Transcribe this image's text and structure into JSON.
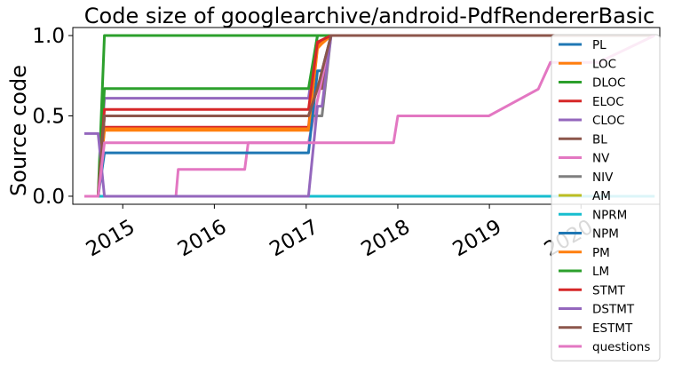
{
  "chart_data": {
    "type": "line",
    "title": "Code size of googlearchive/android-PdfRendererBasic",
    "xlabel": "",
    "ylabel": "Source code",
    "xlim": [
      "2014-06-16",
      "2020-11-10"
    ],
    "ylim": [
      -0.05,
      1.05
    ],
    "x_ticks": [
      "2015",
      "2016",
      "2017",
      "2018",
      "2019",
      "2020"
    ],
    "x_tick_dates": [
      "2015-01-01",
      "2016-01-01",
      "2017-01-01",
      "2018-01-01",
      "2019-01-01",
      "2020-01-01"
    ],
    "y_ticks": [
      "0.0",
      "0.5",
      "1.0"
    ],
    "y_tick_values": [
      0,
      0.5,
      1
    ],
    "grid": false,
    "legend_position": "right",
    "series": [
      {
        "name": "PL",
        "color": "#1f77b4",
        "x": [
          "2014-08-01",
          "2014-09-25",
          "2014-10-20",
          "2020-10-20"
        ],
        "y": [
          0,
          0,
          0,
          0
        ]
      },
      {
        "name": "LOC",
        "color": "#ff7f0e",
        "x": [
          "2014-08-01",
          "2014-09-25",
          "2014-10-20",
          "2017-01-10",
          "2017-02-15",
          "2017-03-05",
          "2017-04-10",
          "2020-10-20"
        ],
        "y": [
          0,
          0,
          0.41,
          0.41,
          0.92,
          0.95,
          1,
          1
        ]
      },
      {
        "name": "DLOC",
        "color": "#2ca02c",
        "x": [
          "2014-08-01",
          "2014-09-25",
          "2014-10-20",
          "2017-01-10",
          "2017-02-15",
          "2017-04-10",
          "2020-10-20"
        ],
        "y": [
          0,
          0,
          1,
          1,
          1,
          1,
          1
        ]
      },
      {
        "name": "ELOC",
        "color": "#d62728",
        "x": [
          "2014-08-01",
          "2014-09-25",
          "2014-10-20",
          "2017-01-10",
          "2017-02-15",
          "2017-03-05",
          "2017-04-10",
          "2020-10-20"
        ],
        "y": [
          0,
          0,
          0.43,
          0.43,
          0.94,
          0.96,
          1,
          1
        ]
      },
      {
        "name": "CLOC",
        "color": "#9467bd",
        "x": [
          "2014-08-01",
          "2014-09-25",
          "2014-10-20",
          "2017-01-10",
          "2017-02-15",
          "2017-04-10",
          "2020-10-20"
        ],
        "y": [
          0,
          0,
          0.61,
          0.61,
          1,
          1,
          1
        ]
      },
      {
        "name": "BL",
        "color": "#8c564b",
        "x": [
          "2014-08-01",
          "2014-09-25",
          "2014-10-20",
          "2017-01-10",
          "2017-02-15",
          "2017-03-05",
          "2017-04-10",
          "2020-10-20"
        ],
        "y": [
          0,
          0,
          0.5,
          0.5,
          0.67,
          0.67,
          1,
          1
        ]
      },
      {
        "name": "NV",
        "color": "#e377c2",
        "x": [
          "2014-08-01",
          "2014-09-25",
          "2014-10-20",
          "2015-08-01",
          "2015-08-10",
          "2016-05-01",
          "2016-05-15",
          "2017-01-10",
          "2017-04-10",
          "2020-10-20"
        ],
        "y": [
          0,
          0,
          0,
          0,
          0.167,
          0.167,
          0.333,
          0.333,
          1,
          1
        ]
      },
      {
        "name": "NIV",
        "color": "#7f7f7f",
        "x": [
          "2014-08-01",
          "2014-09-25",
          "2014-10-20",
          "2017-01-10",
          "2017-02-15",
          "2017-03-05",
          "2017-04-10",
          "2020-10-20"
        ],
        "y": [
          0,
          0,
          0.5,
          0.5,
          0.5,
          0.5,
          1,
          1
        ]
      },
      {
        "name": "AM",
        "color": "#bcbd22",
        "x": [
          "2014-08-01",
          "2020-10-20"
        ],
        "y": [
          0,
          0
        ]
      },
      {
        "name": "NPRM",
        "color": "#17becf",
        "x": [
          "2014-08-01",
          "2020-10-20"
        ],
        "y": [
          0,
          0
        ]
      },
      {
        "name": "NPM",
        "color": "#1f77b4",
        "x": [
          "2014-08-01",
          "2014-09-25",
          "2014-10-20",
          "2017-01-10",
          "2017-02-15",
          "2017-03-05",
          "2017-04-10",
          "2020-10-20"
        ],
        "y": [
          0,
          0,
          0.27,
          0.27,
          0.78,
          0.78,
          1,
          1
        ]
      },
      {
        "name": "PM",
        "color": "#ff7f0e",
        "x": [
          "2014-08-01",
          "2014-09-25",
          "2014-10-20",
          "2017-01-10",
          "2017-02-15",
          "2017-04-10",
          "2020-10-20"
        ],
        "y": [
          0,
          0,
          0.42,
          0.42,
          0.93,
          1,
          1
        ]
      },
      {
        "name": "LM",
        "color": "#2ca02c",
        "x": [
          "2014-08-01",
          "2014-09-25",
          "2014-10-20",
          "2017-01-10",
          "2017-02-15",
          "2017-04-10",
          "2020-10-20"
        ],
        "y": [
          0,
          0,
          0.67,
          0.67,
          1,
          1,
          1
        ]
      },
      {
        "name": "STMT",
        "color": "#d62728",
        "x": [
          "2014-08-01",
          "2014-09-25",
          "2014-10-20",
          "2017-01-10",
          "2017-02-15",
          "2017-04-10",
          "2020-10-20"
        ],
        "y": [
          0,
          0,
          0.54,
          0.54,
          0.96,
          1,
          1
        ]
      },
      {
        "name": "DSTMT",
        "color": "#9467bd",
        "x": [
          "2014-08-01",
          "2014-09-25",
          "2014-10-20",
          "2017-01-10",
          "2017-02-15",
          "2017-03-05",
          "2017-04-10",
          "2020-10-20"
        ],
        "y": [
          0.39,
          0.39,
          0,
          0,
          0.56,
          0.56,
          1,
          1
        ]
      },
      {
        "name": "ESTMT",
        "color": "#8c564b",
        "x": [
          "2014-08-01",
          "2014-09-25",
          "2014-10-20",
          "2017-01-10",
          "2017-02-15",
          "2017-04-10",
          "2020-10-20"
        ],
        "y": [
          0,
          0,
          0.5,
          0.5,
          0.67,
          1,
          1
        ]
      },
      {
        "name": "questions",
        "color": "#e377c2",
        "x": [
          "2014-08-01",
          "2014-09-25",
          "2014-10-20",
          "2017-01-10",
          "2017-04-10",
          "2017-12-15",
          "2018-01-01",
          "2018-12-20",
          "2018-12-30",
          "2019-07-15",
          "2019-09-01",
          "2020-03-10",
          "2020-10-20"
        ],
        "y": [
          0,
          0,
          0.333,
          0.333,
          0.333,
          0.333,
          0.5,
          0.5,
          0.5,
          0.667,
          0.833,
          0.833,
          1
        ]
      }
    ]
  }
}
